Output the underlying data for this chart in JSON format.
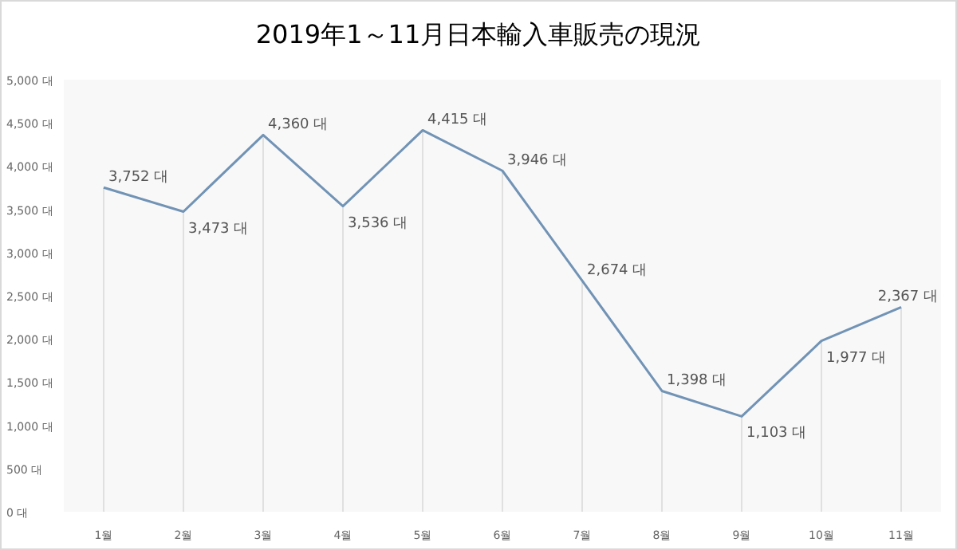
{
  "chart_data": {
    "type": "line",
    "title": "2019年1～11月日本輸入車販売の現況",
    "categories": [
      "1월",
      "2월",
      "3월",
      "4월",
      "5월",
      "6월",
      "7월",
      "8월",
      "9월",
      "10월",
      "11월"
    ],
    "series": [
      {
        "color": "#7193b5",
        "values": [
          3752,
          3473,
          4360,
          3536,
          4415,
          3946,
          2674,
          1398,
          1103,
          1977,
          2367
        ],
        "value_labels": [
          "3,752 대",
          "3,473 대",
          "4,360 대",
          "3,536 대",
          "4,415 대",
          "3,946 대",
          "2,674 대",
          "1,398 대",
          "1,103 대",
          "1,977 대",
          "2,367 대"
        ]
      }
    ],
    "ylim": [
      0,
      5000
    ],
    "yticks": [
      {
        "value": 0,
        "label": "0 대"
      },
      {
        "value": 500,
        "label": "500 대"
      },
      {
        "value": 1000,
        "label": "1,000 대"
      },
      {
        "value": 1500,
        "label": "1,500 대"
      },
      {
        "value": 2000,
        "label": "2,000 대"
      },
      {
        "value": 2500,
        "label": "2,500 대"
      },
      {
        "value": 3000,
        "label": "3,000 대"
      },
      {
        "value": 3500,
        "label": "3,500 대"
      },
      {
        "value": 4000,
        "label": "4,000 대"
      },
      {
        "value": 4500,
        "label": "4,500 대"
      },
      {
        "value": 5000,
        "label": "5,000 대"
      }
    ],
    "grid": "x",
    "marker": "none",
    "line_style": "solid"
  }
}
